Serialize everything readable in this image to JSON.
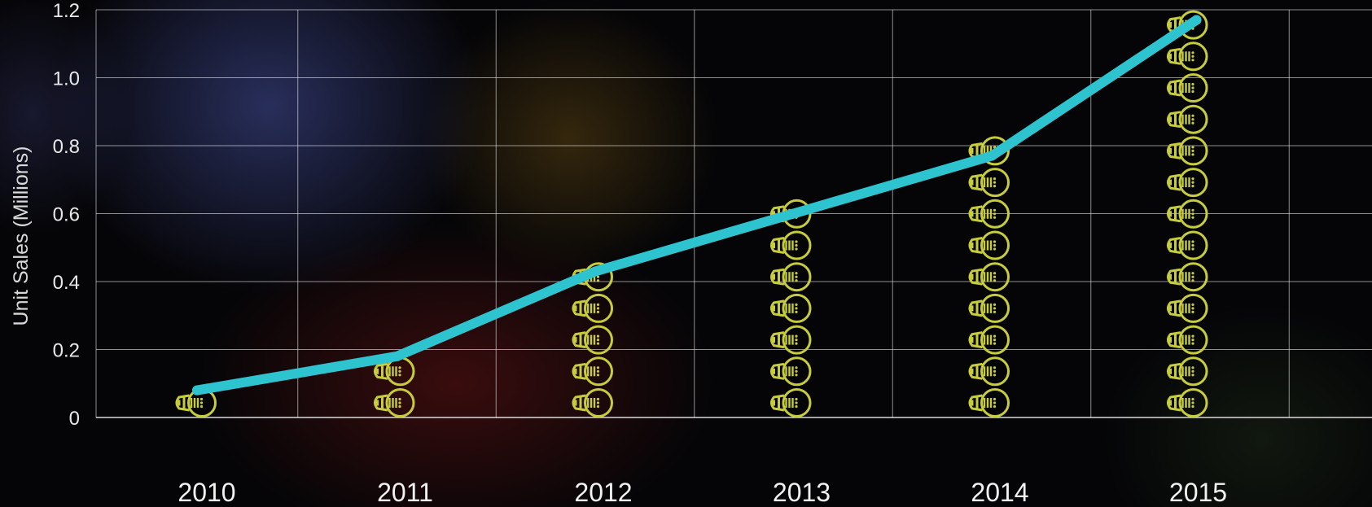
{
  "chart_data": {
    "type": "line",
    "title": "",
    "xlabel": "",
    "ylabel": "Unit Sales (Millions)",
    "categories": [
      "2010",
      "2011",
      "2012",
      "2013",
      "2014",
      "2015"
    ],
    "values": [
      0.08,
      0.18,
      0.43,
      0.6,
      0.77,
      1.17
    ],
    "pictogram_counts": [
      1,
      2,
      5,
      7,
      9,
      13
    ],
    "pictogram_icon": "lightbulb-icon",
    "ylim": [
      0,
      1.2
    ],
    "yticks": [
      "0",
      "0.2",
      "0.4",
      "0.6",
      "0.8",
      "1.0",
      "1.2"
    ],
    "grid": true,
    "line_color": "#2ec4cf",
    "icon_color": "#c6cc3c"
  }
}
